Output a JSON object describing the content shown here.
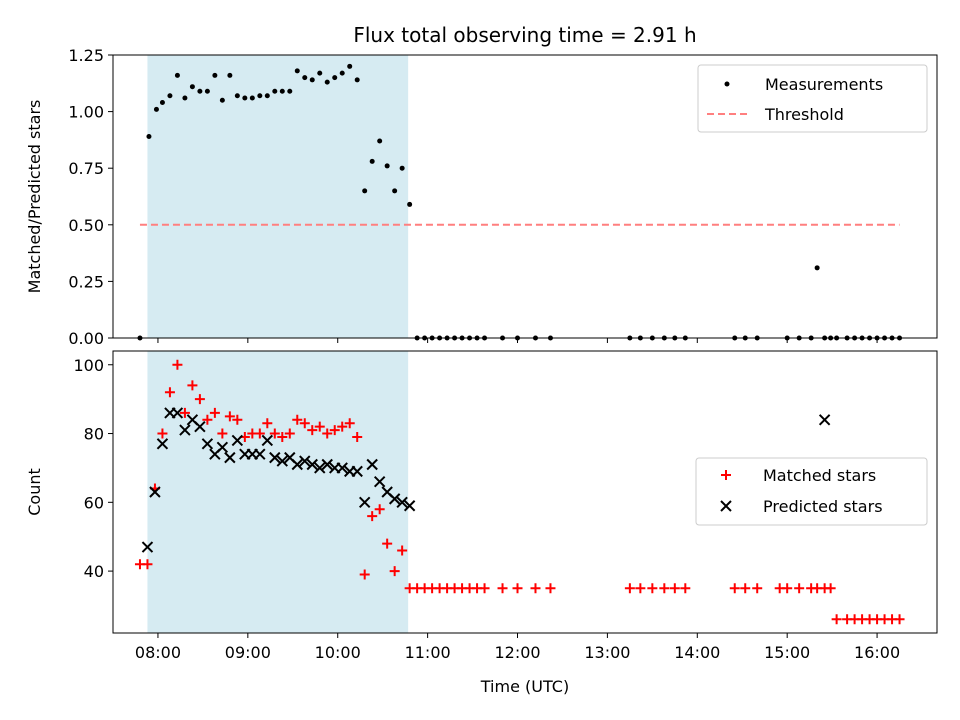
{
  "chart_data": [
    {
      "type": "scatter",
      "title": "Flux total observing time = 2.91 h",
      "xlabel": "",
      "ylabel": "Matched/Predicted stars",
      "ylim": [
        0,
        1.25
      ],
      "yticks": [
        "0.00",
        "0.25",
        "0.50",
        "0.75",
        "1.00",
        "1.25"
      ],
      "xlim": [
        "07:30",
        "16:40"
      ],
      "shaded_region": [
        "07:53",
        "10:47"
      ],
      "shade_color": "#add8e6",
      "threshold": {
        "name": "Threshold",
        "y": 0.5,
        "x_range": [
          "07:48",
          "16:15"
        ],
        "color": "#ff7f7f"
      },
      "legend_position": "top-right",
      "series": [
        {
          "name": "Measurements",
          "color": "#000000",
          "x": [
            "07:48",
            "07:54",
            "07:59",
            "08:03",
            "08:08",
            "08:13",
            "08:18",
            "08:23",
            "08:28",
            "08:33",
            "08:38",
            "08:43",
            "08:48",
            "08:53",
            "08:58",
            "09:03",
            "09:08",
            "09:13",
            "09:18",
            "09:23",
            "09:28",
            "09:33",
            "09:38",
            "09:43",
            "09:48",
            "09:53",
            "09:58",
            "10:03",
            "10:08",
            "10:13",
            "10:18",
            "10:23",
            "10:28",
            "10:33",
            "10:38",
            "10:43",
            "10:48",
            "10:53",
            "10:58",
            "11:03",
            "11:08",
            "11:13",
            "11:18",
            "11:23",
            "11:28",
            "11:33",
            "11:38",
            "11:50",
            "12:00",
            "12:12",
            "12:22",
            "13:15",
            "13:22",
            "13:30",
            "13:38",
            "13:45",
            "13:52",
            "14:25",
            "14:32",
            "14:40",
            "15:00",
            "15:08",
            "15:16",
            "15:20",
            "15:25",
            "15:29",
            "15:33",
            "15:40",
            "15:45",
            "15:50",
            "15:55",
            "16:00",
            "16:05",
            "16:10",
            "16:15"
          ],
          "y": [
            0.0,
            0.89,
            1.01,
            1.04,
            1.07,
            1.16,
            1.06,
            1.11,
            1.09,
            1.09,
            1.16,
            1.05,
            1.16,
            1.07,
            1.06,
            1.06,
            1.07,
            1.07,
            1.09,
            1.09,
            1.09,
            1.18,
            1.15,
            1.14,
            1.17,
            1.13,
            1.15,
            1.17,
            1.2,
            1.14,
            0.65,
            0.78,
            0.87,
            0.76,
            0.65,
            0.75,
            0.59,
            0.0,
            0.0,
            0.0,
            0.0,
            0.0,
            0.0,
            0.0,
            0.0,
            0.0,
            0.0,
            0.0,
            0.0,
            0.0,
            0.0,
            0.0,
            0.0,
            0.0,
            0.0,
            0.0,
            0.0,
            0.0,
            0.0,
            0.0,
            0.0,
            0.0,
            0.0,
            0.31,
            0.0,
            0.0,
            0.0,
            0.0,
            0.0,
            0.0,
            0.0,
            0.0,
            0.0,
            0.0,
            0.0
          ]
        }
      ]
    },
    {
      "type": "scatter",
      "title": "",
      "xlabel": "Time (UTC)",
      "ylabel": "Count",
      "ylim": [
        22,
        104
      ],
      "yticks": [
        "40",
        "60",
        "80",
        "100"
      ],
      "xticks": [
        "08:00",
        "09:00",
        "10:00",
        "11:00",
        "12:00",
        "13:00",
        "14:00",
        "15:00",
        "16:00"
      ],
      "xlim": [
        "07:30",
        "16:40"
      ],
      "shaded_region": [
        "07:53",
        "10:47"
      ],
      "shade_color": "#add8e6",
      "legend_position": "center-right",
      "series": [
        {
          "name": "Matched stars",
          "marker": "+",
          "color": "#ff0000",
          "x": [
            "07:48",
            "07:53",
            "07:58",
            "08:03",
            "08:08",
            "08:13",
            "08:18",
            "08:23",
            "08:28",
            "08:33",
            "08:38",
            "08:43",
            "08:48",
            "08:53",
            "08:58",
            "09:03",
            "09:08",
            "09:13",
            "09:18",
            "09:23",
            "09:28",
            "09:33",
            "09:38",
            "09:43",
            "09:48",
            "09:53",
            "09:58",
            "10:03",
            "10:08",
            "10:13",
            "10:18",
            "10:23",
            "10:28",
            "10:33",
            "10:38",
            "10:43",
            "10:48",
            "10:53",
            "10:58",
            "11:03",
            "11:08",
            "11:13",
            "11:18",
            "11:23",
            "11:28",
            "11:33",
            "11:38",
            "11:50",
            "12:00",
            "12:12",
            "12:22",
            "13:15",
            "13:22",
            "13:30",
            "13:38",
            "13:45",
            "13:52",
            "14:25",
            "14:32",
            "14:40",
            "14:55",
            "15:00",
            "15:08",
            "15:16",
            "15:20",
            "15:25",
            "15:29",
            "15:33",
            "15:40",
            "15:45",
            "15:50",
            "15:55",
            "16:00",
            "16:05",
            "16:10",
            "16:15"
          ],
          "y": [
            42,
            42,
            64,
            80,
            92,
            100,
            86,
            94,
            90,
            84,
            86,
            80,
            85,
            84,
            79,
            80,
            80,
            83,
            80,
            79,
            80,
            84,
            83,
            81,
            82,
            80,
            81,
            82,
            83,
            79,
            39,
            56,
            58,
            48,
            40,
            46,
            35,
            35,
            35,
            35,
            35,
            35,
            35,
            35,
            35,
            35,
            35,
            35,
            35,
            35,
            35,
            35,
            35,
            35,
            35,
            35,
            35,
            35,
            35,
            35,
            35,
            35,
            35,
            35,
            35,
            35,
            35,
            26,
            26,
            26,
            26,
            26,
            26,
            26,
            26,
            26
          ]
        },
        {
          "name": "Predicted stars",
          "marker": "x",
          "color": "#000000",
          "x": [
            "07:53",
            "07:58",
            "08:03",
            "08:08",
            "08:13",
            "08:18",
            "08:23",
            "08:28",
            "08:33",
            "08:38",
            "08:43",
            "08:48",
            "08:53",
            "08:58",
            "09:03",
            "09:08",
            "09:13",
            "09:18",
            "09:23",
            "09:28",
            "09:33",
            "09:38",
            "09:43",
            "09:48",
            "09:53",
            "09:58",
            "10:03",
            "10:08",
            "10:13",
            "10:18",
            "10:23",
            "10:28",
            "10:33",
            "10:38",
            "10:43",
            "10:48",
            "15:25"
          ],
          "y": [
            47,
            63,
            77,
            86,
            86,
            81,
            84,
            82,
            77,
            74,
            76,
            73,
            78,
            74,
            74,
            74,
            78,
            73,
            72,
            73,
            71,
            72,
            71,
            70,
            71,
            70,
            70,
            69,
            69,
            60,
            71,
            66,
            63,
            61,
            60,
            59,
            84
          ]
        }
      ]
    }
  ]
}
